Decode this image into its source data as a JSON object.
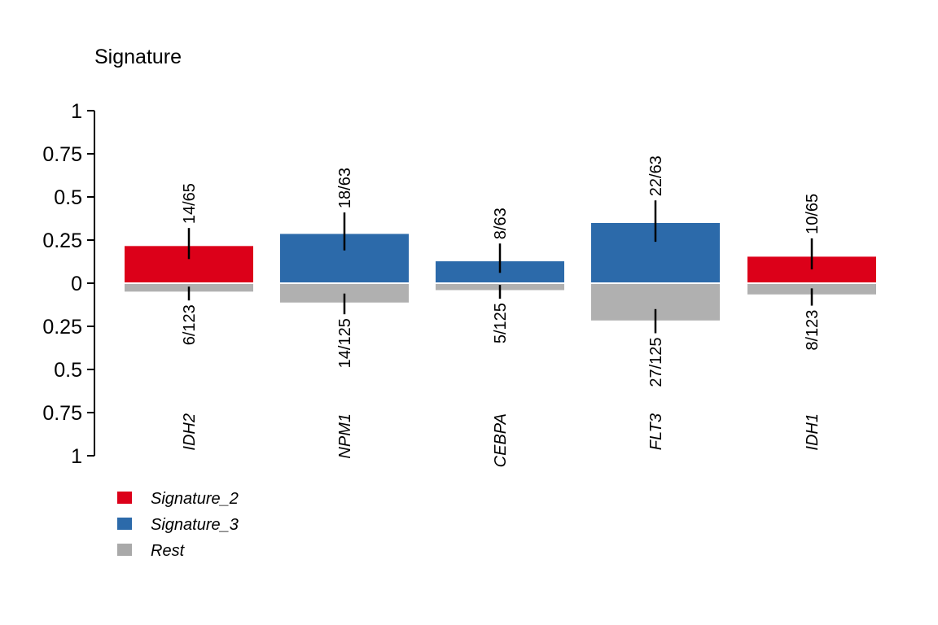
{
  "chart_data": {
    "type": "bar",
    "title": "Signature",
    "xlabel": "",
    "ylabel": "",
    "ylim": [
      -1,
      1
    ],
    "y_tick_labels": [
      "1",
      "0.75",
      "0.5",
      "0.25",
      "0",
      "0.25",
      "0.5",
      "0.75",
      "1"
    ],
    "categories": [
      "IDH2",
      "NPM1",
      "CEBPA",
      "FLT3",
      "IDH1"
    ],
    "series": [
      {
        "name": "Signature_2",
        "color": "#DC0019",
        "direction": "up",
        "values": [
          0.2154,
          null,
          null,
          null,
          0.1538
        ],
        "errors": [
          [
            0.14,
            0.32
          ],
          null,
          null,
          null,
          [
            0.08,
            0.26
          ]
        ],
        "labels": [
          "14/65",
          "",
          "",
          "",
          "10/65"
        ]
      },
      {
        "name": "Signature_3",
        "color": "#2C6AAA",
        "direction": "up",
        "values": [
          null,
          0.2857,
          0.127,
          0.3492,
          null
        ],
        "errors": [
          null,
          [
            0.19,
            0.41
          ],
          [
            0.06,
            0.23
          ],
          [
            0.24,
            0.48
          ],
          null
        ],
        "labels": [
          "",
          "18/63",
          "8/63",
          "22/63",
          ""
        ]
      },
      {
        "name": "Rest",
        "color": "#B0B0B0",
        "direction": "down",
        "values": [
          0.0488,
          0.112,
          0.04,
          0.216,
          0.065
        ],
        "errors": [
          [
            0.02,
            0.1
          ],
          [
            0.06,
            0.18
          ],
          [
            0.01,
            0.09
          ],
          [
            0.15,
            0.29
          ],
          [
            0.03,
            0.13
          ]
        ],
        "labels": [
          "6/123",
          "14/125",
          "5/125",
          "27/125",
          "8/123"
        ]
      }
    ],
    "legend": {
      "position": "bottom-left",
      "items": [
        {
          "label": "Signature_2",
          "color": "#DC0019"
        },
        {
          "label": "Signature_3",
          "color": "#2C6AAA"
        },
        {
          "label": "Rest",
          "color": "#A9A9A9"
        }
      ]
    }
  }
}
